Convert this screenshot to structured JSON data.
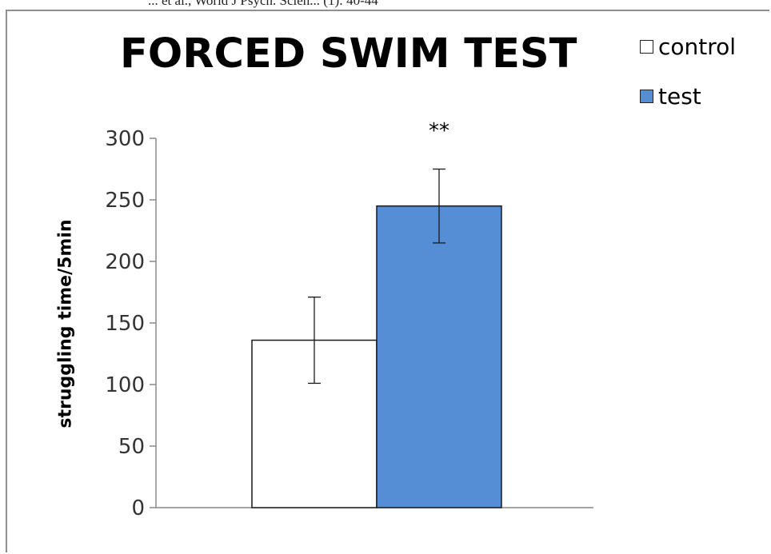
{
  "header_fragment": "... et al., World J Psych. Scien... (1): 40-44",
  "chart_data": {
    "type": "bar",
    "title": "FORCED SWIM TEST",
    "ylabel": "struggling time/5min",
    "xlabel": "",
    "ylim": [
      0,
      300
    ],
    "yticks": [
      0,
      50,
      100,
      150,
      200,
      250,
      300
    ],
    "series": [
      {
        "name": "control",
        "value": 136,
        "error": 35,
        "color": "#ffffff",
        "annotation": ""
      },
      {
        "name": "test",
        "value": 245,
        "error": 30,
        "color": "#558ed5",
        "annotation": "**"
      }
    ],
    "legend_position": "top-right",
    "grid": false
  }
}
